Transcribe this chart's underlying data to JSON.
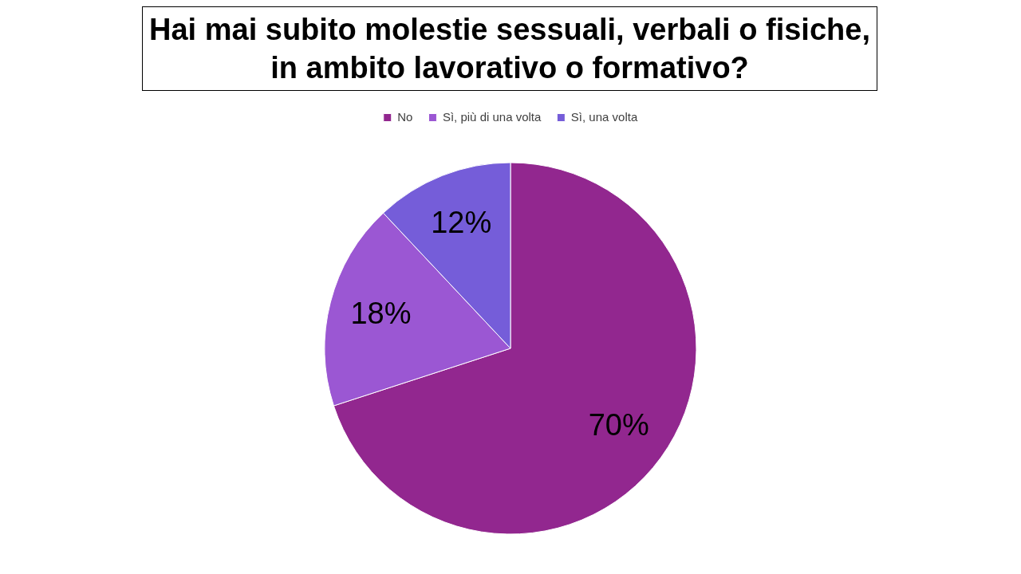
{
  "chart_data": {
    "type": "pie",
    "title": "Hai mai subito molestie sessuali, verbali o fisiche, in ambito lavorativo o formativo?",
    "categories": [
      "No",
      "Sì, più di una volta",
      "Sì, una volta"
    ],
    "values": [
      70,
      18,
      12
    ],
    "colors": [
      "#92278f",
      "#9b57d3",
      "#755dd9"
    ],
    "value_labels": [
      "70%",
      "18%",
      "12%"
    ],
    "legend": "top"
  }
}
